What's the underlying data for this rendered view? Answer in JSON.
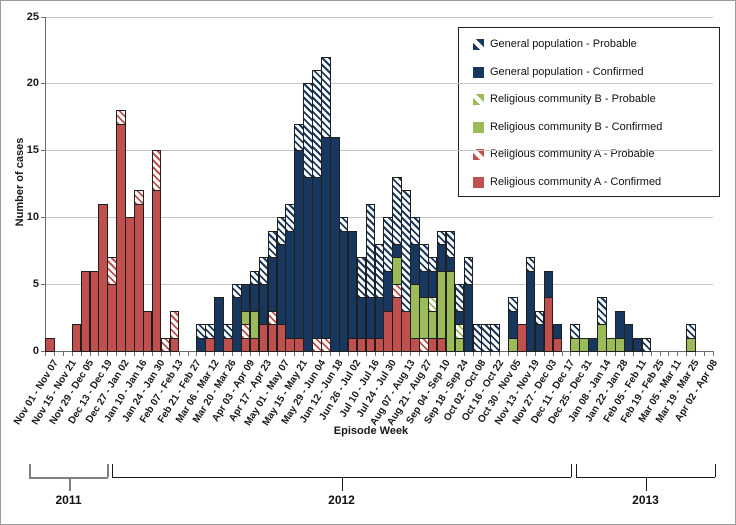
{
  "chart_data": {
    "type": "bar",
    "stacked": true,
    "xlabel": "Episode Week",
    "ylabel": "Number of cases",
    "ylim": [
      0,
      25
    ],
    "yticks": [
      0,
      5,
      10,
      15,
      20,
      25
    ],
    "grid": "horizontal",
    "legend_position": "top-right",
    "series_columns_bottom_to_top": [
      "a_confirmed",
      "a_probable",
      "b_confirmed",
      "b_probable",
      "gp_confirmed",
      "gp_probable"
    ],
    "legend_entries": [
      {
        "label": "General population - Probable",
        "fill": "hatched",
        "color": "#17375E"
      },
      {
        "label": "General population - Confirmed",
        "fill": "solid",
        "color": "#17375E"
      },
      {
        "label": "Religious community B - Probable",
        "fill": "hatched",
        "color": "#9BBB59"
      },
      {
        "label": "Religious community B - Confirmed",
        "fill": "solid",
        "color": "#9BBB59"
      },
      {
        "label": "Religious community A - Probable",
        "fill": "hatched",
        "color": "#C0504D"
      },
      {
        "label": "Religious community A - Confirmed",
        "fill": "solid",
        "color": "#C0504D"
      }
    ],
    "colors": {
      "general_population": "#17375E",
      "community_b": "#9BBB59",
      "community_a": "#C0504D",
      "gridline": "#C6C6C6",
      "axis": "#6E6E6E"
    },
    "weeks": [
      [
        "Nov 01 - Nov 07",
        1,
        0,
        0,
        0,
        0,
        0
      ],
      [
        "",
        0,
        0,
        0,
        0,
        0,
        0
      ],
      [
        "Nov 15 - Nov 21",
        0,
        0,
        0,
        0,
        0,
        0
      ],
      [
        "",
        2,
        0,
        0,
        0,
        0,
        0
      ],
      [
        "Nov 29 - Dec 05",
        6,
        0,
        0,
        0,
        0,
        0
      ],
      [
        "",
        6,
        0,
        0,
        0,
        0,
        0
      ],
      [
        "Dec 13 - Dec 19",
        11,
        0,
        0,
        0,
        0,
        0
      ],
      [
        "",
        5,
        2,
        0,
        0,
        0,
        0
      ],
      [
        "Dec 27 - Jan 02",
        17,
        1,
        0,
        0,
        0,
        0
      ],
      [
        "",
        10,
        0,
        0,
        0,
        0,
        0
      ],
      [
        "Jan 10 - Jan 16",
        11,
        1,
        0,
        0,
        0,
        0
      ],
      [
        "",
        3,
        0,
        0,
        0,
        0,
        0
      ],
      [
        "Jan 24 - Jan 30",
        12,
        3,
        0,
        0,
        0,
        0
      ],
      [
        "",
        0,
        1,
        0,
        0,
        0,
        0
      ],
      [
        "Feb 07 - Feb 13",
        1,
        2,
        0,
        0,
        0,
        0
      ],
      [
        "",
        0,
        0,
        0,
        0,
        0,
        0
      ],
      [
        "Feb 21 - Feb 27",
        0,
        0,
        0,
        0,
        0,
        0
      ],
      [
        "",
        0,
        0,
        0,
        0,
        1,
        1
      ],
      [
        "Mar 06 - Mar 12",
        1,
        0,
        0,
        0,
        0,
        1
      ],
      [
        "",
        0,
        0,
        0,
        0,
        4,
        0
      ],
      [
        "Mar 20 - Mar 26",
        1,
        0,
        0,
        0,
        0,
        1
      ],
      [
        "",
        0,
        0,
        0,
        0,
        4,
        1
      ],
      [
        "Apr 03 - Apr 09",
        1,
        1,
        1,
        0,
        2,
        0
      ],
      [
        "",
        1,
        0,
        2,
        0,
        2,
        1
      ],
      [
        "Apr 17 - Apr 23",
        2,
        0,
        0,
        0,
        3,
        2
      ],
      [
        "",
        2,
        1,
        0,
        0,
        4,
        2
      ],
      [
        "May 01 - May 07",
        2,
        0,
        0,
        0,
        6,
        2
      ],
      [
        "",
        1,
        0,
        0,
        0,
        8,
        2
      ],
      [
        "May 15 - May 21",
        1,
        0,
        0,
        0,
        14,
        2
      ],
      [
        "",
        0,
        0,
        0,
        0,
        13,
        7
      ],
      [
        "May 29 - Jun 04",
        0,
        1,
        0,
        0,
        12,
        8
      ],
      [
        "",
        0,
        1,
        0,
        0,
        15,
        6
      ],
      [
        "Jun 12 - Jun 18",
        0,
        0,
        0,
        0,
        16,
        0
      ],
      [
        "",
        0,
        0,
        0,
        0,
        9,
        1
      ],
      [
        "Jun 26 - Jul 02",
        1,
        0,
        0,
        0,
        8,
        0
      ],
      [
        "",
        1,
        0,
        0,
        0,
        3,
        3
      ],
      [
        "Jul 10 - Jul 16",
        1,
        0,
        0,
        0,
        3,
        7
      ],
      [
        "",
        1,
        0,
        0,
        0,
        3,
        4
      ],
      [
        "Jul 24 - Jul 30",
        3,
        0,
        0,
        0,
        3,
        4
      ],
      [
        "",
        4,
        1,
        2,
        0,
        1,
        5
      ],
      [
        "Aug 07 - Aug 13",
        3,
        0,
        0,
        0,
        0,
        9
      ],
      [
        "",
        1,
        0,
        4,
        0,
        3,
        2
      ],
      [
        "Aug 21 - Aug 27",
        0,
        1,
        3,
        0,
        2,
        2
      ],
      [
        "",
        1,
        0,
        2,
        1,
        2,
        1
      ],
      [
        "Sep 04 - Sep 10",
        1,
        0,
        5,
        0,
        2,
        1
      ],
      [
        "",
        0,
        0,
        6,
        0,
        1,
        2
      ],
      [
        "Sep 18 - Sep 24",
        0,
        0,
        1,
        1,
        1,
        2
      ],
      [
        "",
        0,
        0,
        0,
        0,
        5,
        2
      ],
      [
        "Oct 02 - Oct 08",
        0,
        0,
        0,
        0,
        0,
        2
      ],
      [
        "",
        0,
        0,
        0,
        0,
        0,
        2
      ],
      [
        "Oct 16 - Oct 22",
        0,
        0,
        0,
        0,
        0,
        2
      ],
      [
        "",
        0,
        0,
        0,
        0,
        0,
        0
      ],
      [
        "Oct 30 - Nov 05",
        0,
        0,
        1,
        0,
        2,
        1
      ],
      [
        "",
        2,
        0,
        0,
        0,
        0,
        0
      ],
      [
        "Nov 13 - Nov 19",
        0,
        0,
        0,
        0,
        6,
        1
      ],
      [
        "",
        0,
        0,
        0,
        0,
        2,
        1
      ],
      [
        "Nov 27 - Dec 03",
        4,
        0,
        0,
        0,
        2,
        0
      ],
      [
        "",
        1,
        0,
        0,
        0,
        1,
        0
      ],
      [
        "Dec 11 - Dec 17",
        0,
        0,
        0,
        0,
        0,
        0
      ],
      [
        "",
        0,
        0,
        1,
        0,
        0,
        1
      ],
      [
        "Dec 25 - Dec 31",
        0,
        0,
        1,
        0,
        0,
        0
      ],
      [
        "",
        0,
        0,
        0,
        0,
        1,
        0
      ],
      [
        "Jan 08 - Jan 14",
        0,
        0,
        2,
        0,
        0,
        2
      ],
      [
        "",
        0,
        0,
        1,
        0,
        0,
        0
      ],
      [
        "Jan 22 - Jan 28",
        0,
        0,
        1,
        0,
        2,
        0
      ],
      [
        "",
        0,
        0,
        0,
        0,
        2,
        0
      ],
      [
        "Feb 05 - Feb 11",
        0,
        0,
        0,
        0,
        1,
        0
      ],
      [
        "",
        0,
        0,
        0,
        0,
        0,
        1
      ],
      [
        "Feb 19 - Feb 25",
        0,
        0,
        0,
        0,
        0,
        0
      ],
      [
        "",
        0,
        0,
        0,
        0,
        0,
        0
      ],
      [
        "Mar 05 - Mar 11",
        0,
        0,
        0,
        0,
        0,
        0
      ],
      [
        "",
        0,
        0,
        0,
        0,
        0,
        0
      ],
      [
        "Mar 19 - Mar 25",
        0,
        0,
        1,
        0,
        0,
        1
      ],
      [
        "",
        0,
        0,
        0,
        0,
        0,
        0
      ],
      [
        "Apr 02 - Apr 08",
        0,
        0,
        0,
        0,
        0,
        0
      ]
    ],
    "year_brackets": [
      {
        "label": "2011",
        "x_from": 28,
        "x_to": 107,
        "color": "#808080",
        "thick": 2
      },
      {
        "label": "2012",
        "x_from": 111,
        "x_to": 570,
        "color": "#1a1a1a",
        "thick": 1
      },
      {
        "label": "2013",
        "x_from": 575,
        "x_to": 714,
        "color": "#1a1a1a",
        "thick": 1
      }
    ]
  }
}
